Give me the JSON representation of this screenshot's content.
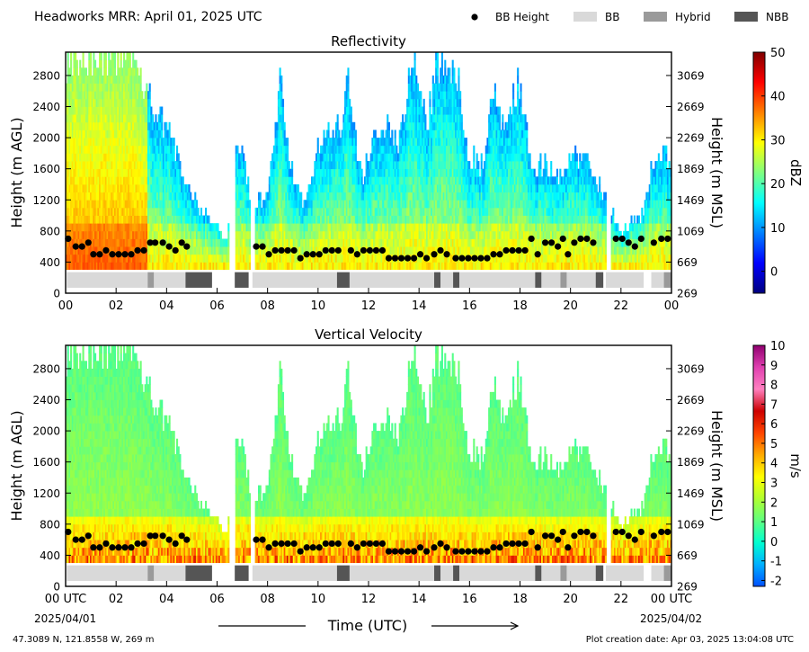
{
  "header": {
    "title": "Headworks MRR:  April 01, 2025 UTC",
    "legend": [
      {
        "label": "BB Height",
        "kind": "dot",
        "color": "#000000"
      },
      {
        "label": "BB",
        "kind": "box",
        "color": "#d9d9d9"
      },
      {
        "label": "Hybrid",
        "kind": "box",
        "color": "#9a9a9a"
      },
      {
        "label": "NBB",
        "kind": "box",
        "color": "#555555"
      }
    ]
  },
  "footer": {
    "location": "47.3089 N, 121.8558 W, 269 m",
    "created": "Plot creation date: Apr 03, 2025 13:04:08 UTC"
  },
  "chart_data": {
    "type": "heatmap",
    "x_ticks": [
      "00 UTC",
      "02",
      "04",
      "06",
      "08",
      "10",
      "12",
      "14",
      "16",
      "18",
      "20",
      "22",
      "00 UTC"
    ],
    "x_ticks_top": [
      "00",
      "02",
      "04",
      "06",
      "08",
      "10",
      "12",
      "14",
      "16",
      "18",
      "20",
      "22",
      "00"
    ],
    "x_date_start": "2025/04/01",
    "x_date_end": "2025/04/02",
    "xlabel": "Time (UTC)",
    "xlim_hours": [
      0,
      24
    ],
    "ylabel_left": "Height (m AGL)",
    "ylabel_right": "Height (m MSL)",
    "ylim": [
      0,
      3100
    ],
    "yticks_left": [
      0,
      400,
      800,
      1200,
      1600,
      2000,
      2400,
      2800
    ],
    "yticks_right": [
      269,
      669,
      1069,
      1469,
      1869,
      2269,
      2669,
      3069
    ],
    "precip_segments": [
      {
        "start": 0.0,
        "end": 6.5
      },
      {
        "start": 6.7,
        "end": 7.3
      },
      {
        "start": 7.5,
        "end": 21.4
      },
      {
        "start": 21.6,
        "end": 24.0
      }
    ],
    "classification": [
      {
        "start": 0.05,
        "end": 3.25,
        "class": "BB"
      },
      {
        "start": 3.25,
        "end": 3.5,
        "class": "Hybrid"
      },
      {
        "start": 3.5,
        "end": 4.75,
        "class": "BB"
      },
      {
        "start": 4.75,
        "end": 5.8,
        "class": "NBB"
      },
      {
        "start": 6.7,
        "end": 7.25,
        "class": "NBB"
      },
      {
        "start": 7.4,
        "end": 10.75,
        "class": "BB"
      },
      {
        "start": 10.75,
        "end": 11.25,
        "class": "NBB"
      },
      {
        "start": 11.25,
        "end": 14.6,
        "class": "BB"
      },
      {
        "start": 14.6,
        "end": 14.85,
        "class": "NBB"
      },
      {
        "start": 14.85,
        "end": 15.35,
        "class": "BB"
      },
      {
        "start": 15.35,
        "end": 15.6,
        "class": "NBB"
      },
      {
        "start": 15.6,
        "end": 18.6,
        "class": "BB"
      },
      {
        "start": 18.6,
        "end": 18.85,
        "class": "NBB"
      },
      {
        "start": 18.85,
        "end": 19.6,
        "class": "BB"
      },
      {
        "start": 19.6,
        "end": 19.85,
        "class": "Hybrid"
      },
      {
        "start": 19.85,
        "end": 21.0,
        "class": "BB"
      },
      {
        "start": 21.0,
        "end": 21.3,
        "class": "NBB"
      },
      {
        "start": 21.4,
        "end": 22.9,
        "class": "BB"
      },
      {
        "start": 23.2,
        "end": 23.7,
        "class": "BB"
      },
      {
        "start": 23.7,
        "end": 24.0,
        "class": "Hybrid"
      }
    ],
    "bb_height": {
      "x": [
        0.1,
        0.4,
        0.65,
        0.9,
        1.1,
        1.35,
        1.6,
        1.85,
        2.1,
        2.35,
        2.6,
        2.85,
        3.1,
        3.35,
        3.55,
        3.85,
        4.1,
        4.35,
        4.6,
        4.8,
        7.55,
        7.8,
        8.05,
        8.3,
        8.55,
        8.8,
        9.05,
        9.3,
        9.55,
        9.8,
        10.05,
        10.3,
        10.55,
        10.8,
        11.3,
        11.55,
        11.8,
        12.05,
        12.3,
        12.55,
        12.8,
        13.05,
        13.3,
        13.55,
        13.8,
        14.05,
        14.3,
        14.6,
        14.85,
        15.1,
        15.45,
        15.7,
        15.95,
        16.2,
        16.45,
        16.7,
        16.95,
        17.2,
        17.45,
        17.7,
        17.95,
        18.2,
        18.45,
        18.7,
        19.0,
        19.25,
        19.5,
        19.7,
        19.9,
        20.15,
        20.4,
        20.65,
        20.9,
        21.8,
        22.05,
        22.3,
        22.55,
        22.8,
        23.3,
        23.6,
        23.85
      ],
      "y": [
        700,
        600,
        600,
        650,
        500,
        500,
        550,
        500,
        500,
        500,
        500,
        550,
        550,
        650,
        650,
        650,
        600,
        550,
        650,
        600,
        600,
        600,
        500,
        550,
        550,
        550,
        550,
        450,
        500,
        500,
        500,
        550,
        550,
        550,
        550,
        500,
        550,
        550,
        550,
        550,
        450,
        450,
        450,
        450,
        450,
        500,
        450,
        500,
        550,
        500,
        450,
        450,
        450,
        450,
        450,
        450,
        500,
        500,
        550,
        550,
        550,
        550,
        700,
        500,
        650,
        650,
        600,
        700,
        500,
        650,
        700,
        700,
        650,
        700,
        700,
        650,
        600,
        700,
        650,
        700,
        700
      ]
    },
    "panels": [
      {
        "title": "Reflectivity",
        "variable": "reflectivity",
        "colorbar_label": "dBZ",
        "colorbar_range": [
          -5,
          50
        ],
        "colorbar_ticks": [
          0,
          10,
          20,
          30,
          40,
          50
        ],
        "colorbar_stops": [
          "#00007f",
          "#0000ff",
          "#0080ff",
          "#00ffff",
          "#80ff80",
          "#ffff00",
          "#ff8000",
          "#ff0000",
          "#7f0000"
        ]
      },
      {
        "title": "Vertical Velocity",
        "variable": "vertical_velocity",
        "colorbar_label": "m/s",
        "colorbar_range": [
          -2.3,
          10
        ],
        "colorbar_ticks": [
          -2,
          -1,
          0,
          1,
          2,
          3,
          4,
          5,
          6,
          7,
          8,
          9,
          10
        ],
        "colorbar_stops": [
          "#0050ff",
          "#00b0ff",
          "#00ffd0",
          "#60ff80",
          "#b0ff30",
          "#ffff00",
          "#ffaa00",
          "#ff4400",
          "#cc0000",
          "#ff80c0",
          "#e040b0",
          "#900070"
        ]
      }
    ],
    "column_tops": [
      {
        "t": 0.0,
        "h": 3000
      },
      {
        "t": 0.6,
        "h": 3000
      },
      {
        "t": 1.4,
        "h": 3000
      },
      {
        "t": 2.0,
        "h": 3000
      },
      {
        "t": 2.8,
        "h": 3000
      },
      {
        "t": 3.2,
        "h": 2500
      },
      {
        "t": 3.7,
        "h": 2200
      },
      {
        "t": 4.2,
        "h": 2000
      },
      {
        "t": 4.7,
        "h": 1400
      },
      {
        "t": 5.2,
        "h": 1100
      },
      {
        "t": 5.7,
        "h": 900
      },
      {
        "t": 6.0,
        "h": 800
      },
      {
        "t": 6.4,
        "h": 600
      },
      {
        "t": 6.7,
        "h": 2100
      },
      {
        "t": 7.2,
        "h": 1400
      },
      {
        "t": 7.5,
        "h": 1100
      },
      {
        "t": 8.0,
        "h": 1300
      },
      {
        "t": 8.5,
        "h": 2700
      },
      {
        "t": 9.0,
        "h": 1400
      },
      {
        "t": 9.5,
        "h": 1100
      },
      {
        "t": 10.0,
        "h": 1900
      },
      {
        "t": 10.5,
        "h": 2000
      },
      {
        "t": 11.0,
        "h": 2200
      },
      {
        "t": 11.2,
        "h": 2800
      },
      {
        "t": 11.7,
        "h": 1400
      },
      {
        "t": 12.3,
        "h": 2000
      },
      {
        "t": 12.7,
        "h": 2100
      },
      {
        "t": 13.2,
        "h": 1900
      },
      {
        "t": 13.8,
        "h": 3000
      },
      {
        "t": 14.3,
        "h": 2100
      },
      {
        "t": 14.8,
        "h": 3000
      },
      {
        "t": 15.2,
        "h": 3000
      },
      {
        "t": 15.5,
        "h": 2700
      },
      {
        "t": 16.0,
        "h": 1700
      },
      {
        "t": 16.5,
        "h": 1600
      },
      {
        "t": 17.0,
        "h": 2600
      },
      {
        "t": 17.4,
        "h": 1900
      },
      {
        "t": 17.9,
        "h": 2700
      },
      {
        "t": 18.5,
        "h": 1500
      },
      {
        "t": 19.0,
        "h": 1600
      },
      {
        "t": 19.5,
        "h": 1400
      },
      {
        "t": 20.0,
        "h": 1700
      },
      {
        "t": 20.5,
        "h": 1700
      },
      {
        "t": 21.0,
        "h": 1400
      },
      {
        "t": 21.6,
        "h": 1000
      },
      {
        "t": 22.0,
        "h": 700
      },
      {
        "t": 22.5,
        "h": 900
      },
      {
        "t": 22.9,
        "h": 1000
      },
      {
        "t": 23.3,
        "h": 1700
      },
      {
        "t": 23.8,
        "h": 1700
      },
      {
        "t": 24.0,
        "h": 1600
      }
    ]
  }
}
